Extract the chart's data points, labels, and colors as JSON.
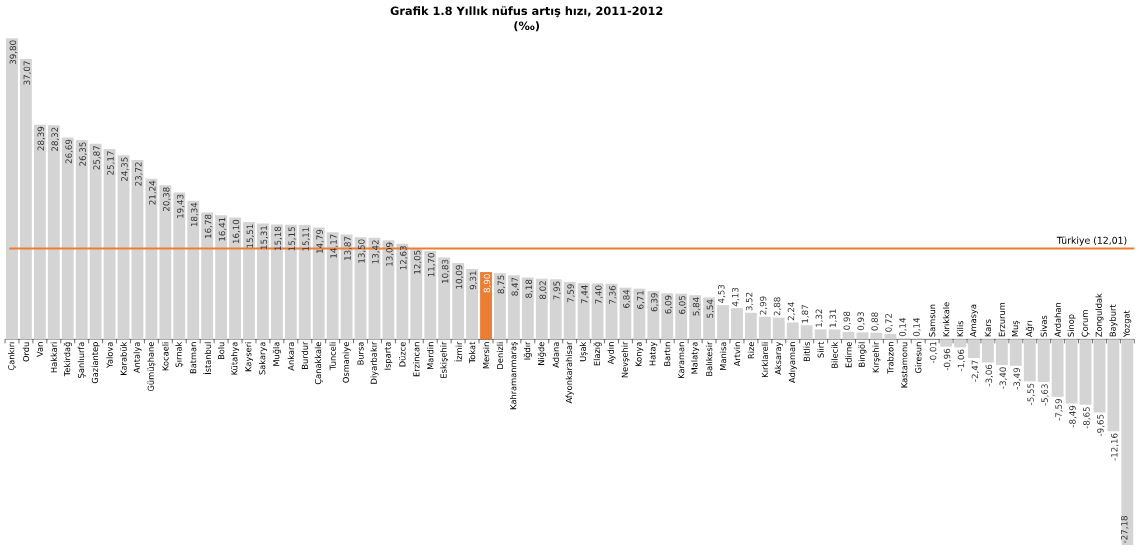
{
  "chart_data": {
    "type": "bar",
    "title": "Grafik 1.8 Yıllık nüfus artış hızı, 2011-2012",
    "subtitle": "(‰)",
    "categories": [
      "Çankırı",
      "Ordu",
      "Van",
      "Hakkari",
      "Tekirdağ",
      "Şanlıurfa",
      "Gaziantep",
      "Yalova",
      "Karabük",
      "Antalya",
      "Gümüşhane",
      "Kocaeli",
      "Şırnak",
      "Batman",
      "İstanbul",
      "Bolu",
      "Kütahya",
      "Kayseri",
      "Sakarya",
      "Muğla",
      "Ankara",
      "Burdur",
      "Çanakkale",
      "Tunceli",
      "Osmaniye",
      "Bursa",
      "Diyarbakır",
      "Isparta",
      "Düzce",
      "Erzincan",
      "Mardin",
      "Eskişehir",
      "İzmir",
      "Tokat",
      "Mersin",
      "Denizli",
      "Kahramanmaraş",
      "Iğdır",
      "Niğde",
      "Adana",
      "Afyonkarahisar",
      "Uşak",
      "Elazığ",
      "Aydın",
      "Nevşehir",
      "Konya",
      "Hatay",
      "Bartın",
      "Karaman",
      "Malatya",
      "Balıkesir",
      "Manisa",
      "Artvin",
      "Rize",
      "Kırklareli",
      "Aksaray",
      "Adıyaman",
      "Bitlis",
      "Siirt",
      "Bilecik",
      "Edirne",
      "Bingöl",
      "Kırşehir",
      "Trabzon",
      "Kastamonu",
      "Giresun",
      "Samsun",
      "Kırıkkale",
      "Kilis",
      "Amasya",
      "Kars",
      "Erzurum",
      "Muş",
      "Ağrı",
      "Sivas",
      "Ardahan",
      "Sinop",
      "Çorum",
      "Zonguldak",
      "Bayburt",
      "Yozgat"
    ],
    "values": [
      39.8,
      37.07,
      28.39,
      28.32,
      26.69,
      26.35,
      25.87,
      25.17,
      24.35,
      23.72,
      21.24,
      20.38,
      19.43,
      18.34,
      16.78,
      16.41,
      16.1,
      15.51,
      15.31,
      15.18,
      15.15,
      15.11,
      14.79,
      14.17,
      13.87,
      13.5,
      13.42,
      13.09,
      12.63,
      12.05,
      11.7,
      10.83,
      10.09,
      9.31,
      8.9,
      8.75,
      8.47,
      8.18,
      8.02,
      7.95,
      7.59,
      7.44,
      7.4,
      7.36,
      6.84,
      6.71,
      6.39,
      6.09,
      6.05,
      5.84,
      5.54,
      4.53,
      4.13,
      3.52,
      2.99,
      2.88,
      2.24,
      1.87,
      1.32,
      1.31,
      0.98,
      0.93,
      0.88,
      0.72,
      0.14,
      0.14,
      -0.01,
      -0.96,
      -1.06,
      -2.47,
      -3.06,
      -3.4,
      -3.49,
      -5.55,
      -5.63,
      -7.59,
      -8.49,
      -8.65,
      -9.65,
      -12.16,
      -27.18
    ],
    "value_labels": [
      "39,80",
      "37,07",
      "28,39",
      "28,32",
      "26,69",
      "26,35",
      "25,87",
      "25,17",
      "24,35",
      "23,72",
      "21,24",
      "20,38",
      "19,43",
      "18,34",
      "16,78",
      "16,41",
      "16,10",
      "15,51",
      "15,31",
      "15,18",
      "15,15",
      "15,11",
      "14,79",
      "14,17",
      "13,87",
      "13,50",
      "13,42",
      "13,09",
      "12,63",
      "12,05",
      "11,70",
      "10,83",
      "10,09",
      "9,31",
      "8,90",
      "8,75",
      "8,47",
      "8,18",
      "8,02",
      "7,95",
      "7,59",
      "7,44",
      "7,40",
      "7,36",
      "6,84",
      "6,71",
      "6,39",
      "6,09",
      "6,05",
      "5,84",
      "5,54",
      "4,53",
      "4,13",
      "3,52",
      "2,99",
      "2,88",
      "2,24",
      "1,87",
      "1,32",
      "1,31",
      "0,98",
      "0,93",
      "0,88",
      "0,72",
      "0,14",
      "0,14",
      "-0,01",
      "-0,96",
      "-1,06",
      "-2,47",
      "-3,06",
      "-3,40",
      "-3,49",
      "-5,55",
      "-5,63",
      "-7,59",
      "-8,49",
      "-8,65",
      "-9,65",
      "-12,16",
      "-27,18"
    ],
    "colors": [
      "#d4d4d4",
      "#d4d4d4",
      "#d4d4d4",
      "#d4d4d4",
      "#d4d4d4",
      "#d4d4d4",
      "#d4d4d4",
      "#d4d4d4",
      "#d4d4d4",
      "#d4d4d4",
      "#d4d4d4",
      "#d4d4d4",
      "#d4d4d4",
      "#d4d4d4",
      "#d4d4d4",
      "#d4d4d4",
      "#d4d4d4",
      "#d4d4d4",
      "#d4d4d4",
      "#d4d4d4",
      "#d4d4d4",
      "#d4d4d4",
      "#d4d4d4",
      "#d4d4d4",
      "#d4d4d4",
      "#d4d4d4",
      "#d4d4d4",
      "#d4d4d4",
      "#d4d4d4",
      "#d4d4d4",
      "#d4d4d4",
      "#d4d4d4",
      "#d4d4d4",
      "#d4d4d4",
      "#ed7d31",
      "#d4d4d4",
      "#d4d4d4",
      "#d4d4d4",
      "#d4d4d4",
      "#d4d4d4",
      "#d4d4d4",
      "#d4d4d4",
      "#d4d4d4",
      "#d4d4d4",
      "#d4d4d4",
      "#d4d4d4",
      "#d4d4d4",
      "#d4d4d4",
      "#d4d4d4",
      "#d4d4d4",
      "#d4d4d4",
      "#d4d4d4",
      "#d4d4d4",
      "#d4d4d4",
      "#d4d4d4",
      "#d4d4d4",
      "#d4d4d4",
      "#d4d4d4",
      "#d4d4d4",
      "#d4d4d4",
      "#d4d4d4",
      "#d4d4d4",
      "#d4d4d4",
      "#d4d4d4",
      "#d4d4d4",
      "#d4d4d4",
      "#d4d4d4",
      "#d4d4d4",
      "#d4d4d4",
      "#d4d4d4",
      "#d4d4d4",
      "#d4d4d4",
      "#d4d4d4",
      "#d4d4d4",
      "#d4d4d4",
      "#d4d4d4",
      "#d4d4d4",
      "#d4d4d4",
      "#d4d4d4",
      "#d4d4d4",
      "#d4d4d4"
    ],
    "ref_lines": [
      {
        "axis": "y",
        "value": 12.01,
        "label": "Türkiye (12,01)",
        "color": "#ed7d31"
      }
    ],
    "tick_labels": "x"
  }
}
